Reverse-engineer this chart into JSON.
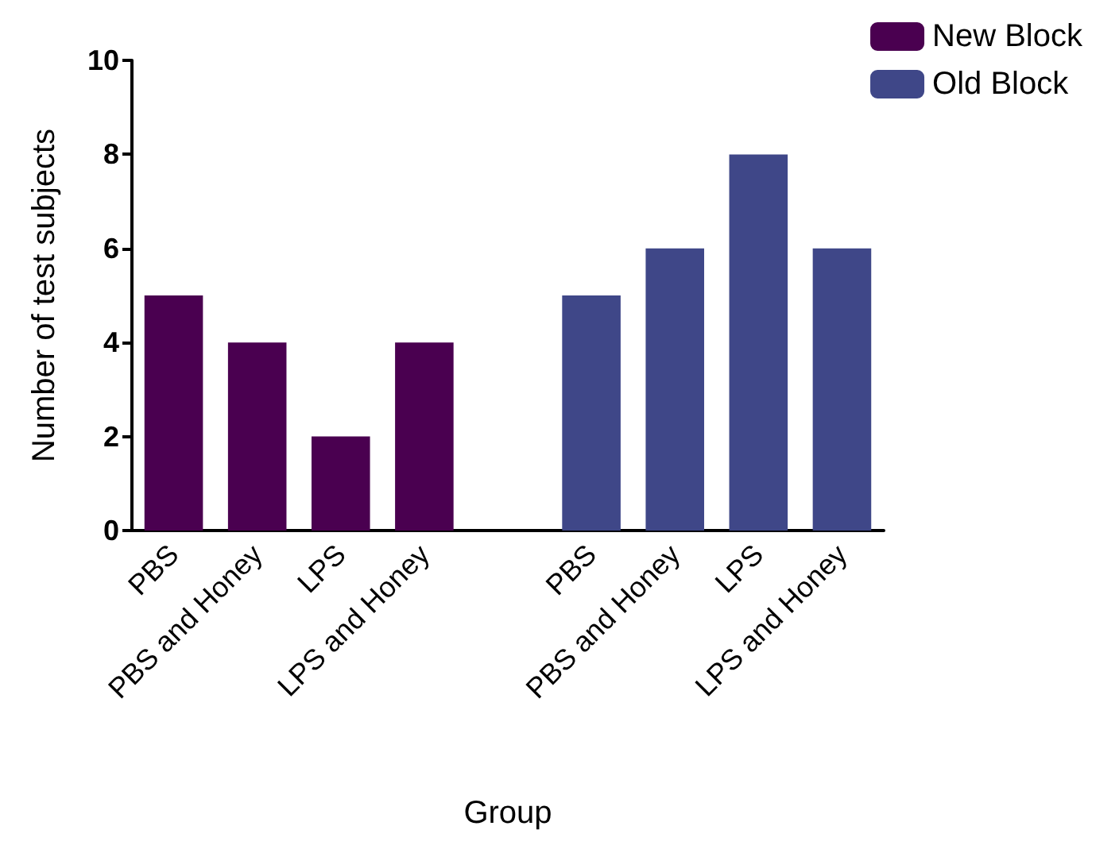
{
  "chart_data": {
    "type": "bar",
    "xlabel": "Group",
    "ylabel": "Number of test subjects",
    "categories": [
      "PBS",
      "PBS and Honey",
      "LPS",
      "LPS and Honey",
      null,
      "PBS",
      "PBS and Honey",
      "LPS",
      "LPS and Honey"
    ],
    "series": [
      {
        "name": "New Block",
        "color": "#4a0050",
        "values": [
          5,
          4,
          2,
          4,
          null,
          null,
          null,
          null,
          null
        ]
      },
      {
        "name": "Old Block",
        "color": "#3f4788",
        "values": [
          null,
          null,
          null,
          null,
          null,
          5,
          6,
          8,
          6
        ]
      }
    ],
    "ylim": [
      0,
      10
    ],
    "yticks": [
      0,
      2,
      4,
      6,
      8,
      10
    ],
    "legend": "top right"
  }
}
